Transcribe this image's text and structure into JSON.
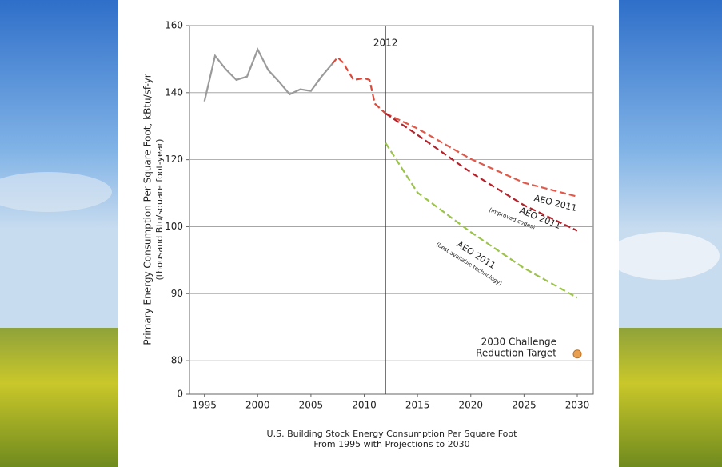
{
  "chart_data": {
    "type": "line",
    "y_label": "Primary Energy Consumption Per Square Foot, kBtu/sf-yr",
    "y_sublabel": "(thousand Btu/square foot-year)",
    "x_title": [
      "U.S. Building Stock Energy Consumption Per Square Foot",
      "From 1995 with Projections to 2030"
    ],
    "xlim": [
      1993.6,
      2031.5
    ],
    "xticks": [
      1995,
      2000,
      2005,
      2010,
      2015,
      2020,
      2025,
      2030
    ],
    "ylim": [
      0,
      160
    ],
    "yticks": [
      0,
      80,
      90,
      100,
      120,
      140,
      160
    ],
    "grid": true,
    "vline": 2012,
    "series": [
      {
        "color": "#9a9a9a",
        "style": "solid",
        "x": [
          1995,
          1996,
          1997,
          1998,
          1999,
          2000,
          2001,
          2002,
          2003,
          2004,
          2005,
          2006,
          2007
        ],
        "values": [
          137.4,
          151,
          147,
          143.8,
          144.8,
          152.9,
          146.7,
          143.3,
          139.5,
          141,
          140.5,
          144.8,
          148.6
        ]
      },
      {
        "color": "#d94a3c",
        "style": "dashed",
        "x": [
          2007,
          2007.5,
          2008,
          2009,
          2010,
          2010.5,
          2011,
          2012
        ],
        "values": [
          148.6,
          150.5,
          149,
          143.8,
          144.3,
          143.8,
          136.7,
          133.8
        ]
      },
      {
        "color": "#e05a4c",
        "style": "dashed",
        "x": [
          2012,
          2015,
          2020,
          2025,
          2030
        ],
        "values": [
          133.8,
          129.3,
          120.2,
          113.1,
          109
        ]
      },
      {
        "color": "#b3222a",
        "style": "dashed",
        "x": [
          2012,
          2015,
          2020,
          2025,
          2030
        ],
        "values": [
          133.8,
          127.4,
          116.2,
          106.4,
          99.4
        ]
      },
      {
        "color": "#9cc44a",
        "style": "dashed",
        "x": [
          2012,
          2015,
          2020,
          2025,
          2030
        ],
        "values": [
          125,
          110.2,
          99.2,
          93.8,
          89.4
        ]
      },
      {
        "color": "#e8a050",
        "style": "point",
        "x": [
          2030
        ],
        "values": [
          81
        ]
      }
    ],
    "annotations": [
      "AEO 2011",
      "AEO 2011",
      "(improved codes)",
      "AEO 2011",
      "(best available technology)",
      "2030 Challenge",
      "Reduction Target"
    ]
  }
}
